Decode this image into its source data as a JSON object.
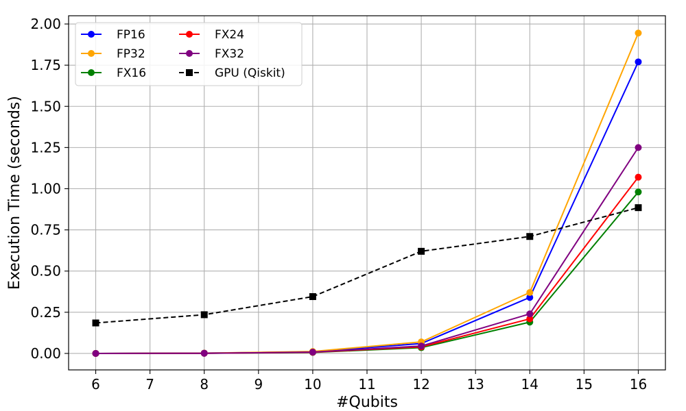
{
  "chart_data": {
    "type": "line",
    "title": "",
    "xlabel": "#Qubits",
    "ylabel": "Execution Time (seconds)",
    "xlim": [
      5.5,
      16.5
    ],
    "ylim": [
      -0.1,
      2.05
    ],
    "xticks": [
      6,
      7,
      8,
      9,
      10,
      11,
      12,
      13,
      14,
      15,
      16
    ],
    "xtick_labels": [
      "6",
      "7",
      "8",
      "9",
      "10",
      "11",
      "12",
      "13",
      "14",
      "15",
      "16"
    ],
    "yticks": [
      0,
      0.25,
      0.5,
      0.75,
      1.0,
      1.25,
      1.5,
      1.75,
      2.0
    ],
    "ytick_labels": [
      "0.00",
      "0.25",
      "0.50",
      "0.75",
      "1.00",
      "1.25",
      "1.50",
      "1.75",
      "2.00"
    ],
    "grid": true,
    "legend_position": "top-left",
    "legend_columns": 2,
    "x": [
      6,
      8,
      10,
      12,
      14,
      16
    ],
    "series": [
      {
        "name": "FP16",
        "color": "#0000ff",
        "marker": "circle",
        "dashed": false,
        "values": [
          0.0,
          0.002,
          0.01,
          0.06,
          0.34,
          1.77
        ]
      },
      {
        "name": "FP32",
        "color": "#ffa500",
        "marker": "circle",
        "dashed": false,
        "values": [
          0.0,
          0.002,
          0.012,
          0.07,
          0.37,
          1.945
        ]
      },
      {
        "name": "FX16",
        "color": "#008000",
        "marker": "circle",
        "dashed": false,
        "values": [
          0.0,
          0.001,
          0.006,
          0.035,
          0.19,
          0.98
        ]
      },
      {
        "name": "FX24",
        "color": "#ff0000",
        "marker": "circle",
        "dashed": false,
        "values": [
          0.0,
          0.001,
          0.007,
          0.04,
          0.21,
          1.07
        ]
      },
      {
        "name": "FX32",
        "color": "#800080",
        "marker": "circle",
        "dashed": false,
        "values": [
          0.0,
          0.001,
          0.008,
          0.045,
          0.24,
          1.25
        ]
      },
      {
        "name": "GPU (Qiskit)",
        "color": "#000000",
        "marker": "square",
        "dashed": true,
        "values": [
          0.185,
          0.235,
          0.345,
          0.62,
          0.71,
          0.885
        ]
      }
    ]
  }
}
